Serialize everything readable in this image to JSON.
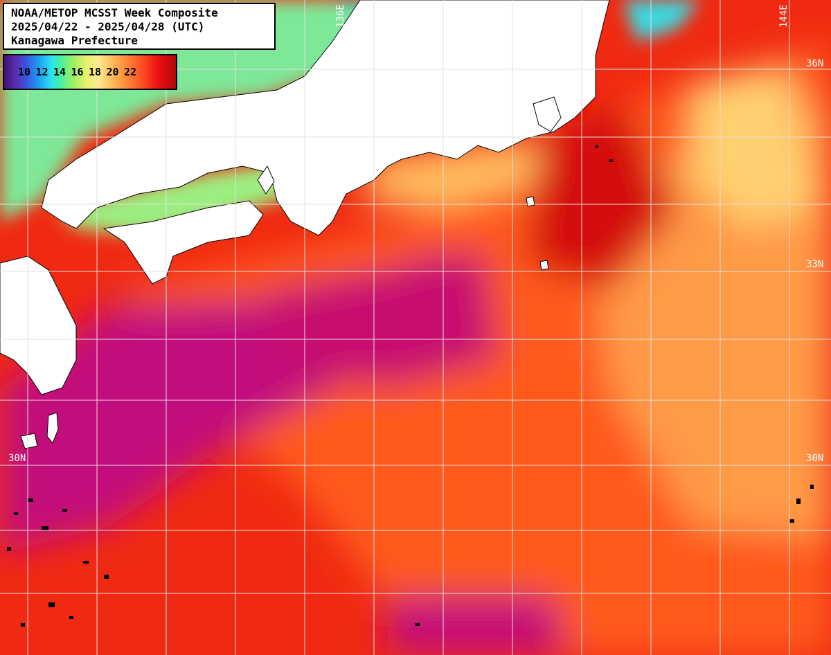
{
  "title": {
    "line1": "NOAA/METOP MCSST Week Composite",
    "line2": "2025/04/22 - 2025/04/28 (UTC)",
    "line3": "Kanagawa Prefecture"
  },
  "legend": {
    "labels": [
      "10",
      "12",
      "14",
      "16",
      "18",
      "20",
      "22"
    ]
  },
  "grid_labels": {
    "lon_136": "136E",
    "lon_144": "144E",
    "lat_36": "36N",
    "lat_33": "33N",
    "lat_30_left": "30N",
    "lat_30_right": "30N"
  },
  "colors": {
    "land": "#ffffff",
    "warm_core": "#c0087a",
    "hot": "#e81e10",
    "orange": "#ff6a1e",
    "light_orange": "#ffa34a",
    "yellow": "#ffe07a",
    "green": "#8ff08a",
    "grid": "#e0e0e0"
  }
}
